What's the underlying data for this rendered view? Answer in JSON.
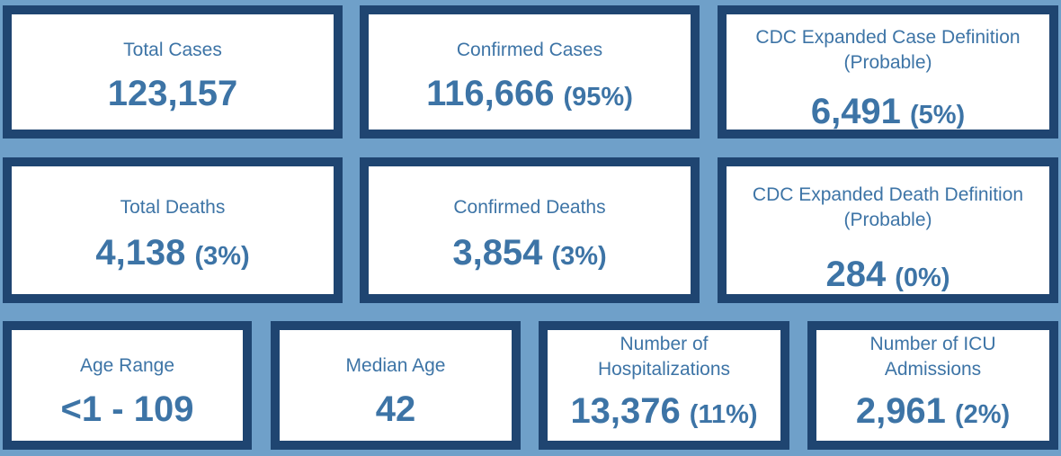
{
  "colors": {
    "background": "#6fa0c9",
    "card_border": "#1f4571",
    "card_fill": "#ffffff",
    "text": "#3d74a6"
  },
  "cards": [
    {
      "label": "Total Cases",
      "value": "123,157",
      "percent": ""
    },
    {
      "label": "Confirmed Cases",
      "value": "116,666",
      "percent": "(95%)"
    },
    {
      "label": "CDC Expanded Case Definition (Probable)",
      "value": "6,491",
      "percent": "(5%)"
    },
    {
      "label": "Total Deaths",
      "value": "4,138",
      "percent": "(3%)"
    },
    {
      "label": "Confirmed Deaths",
      "value": "3,854",
      "percent": "(3%)"
    },
    {
      "label": "CDC Expanded Death Definition (Probable)",
      "value": "284",
      "percent": "(0%)"
    },
    {
      "label": "Age Range",
      "value": "<1 - 109",
      "percent": ""
    },
    {
      "label": "Median Age",
      "value": "42",
      "percent": ""
    },
    {
      "label": "Number of Hospitalizations",
      "value": "13,376",
      "percent": "(11%)"
    },
    {
      "label": "Number of ICU Admissions",
      "value": "2,961",
      "percent": "(2%)"
    }
  ]
}
